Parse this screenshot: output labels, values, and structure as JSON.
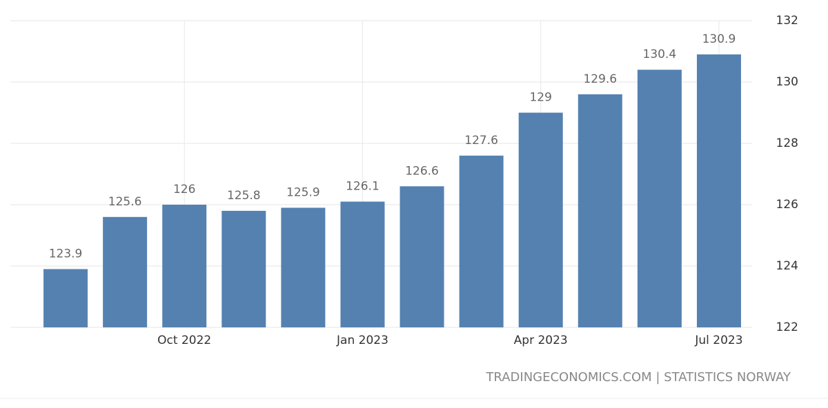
{
  "chart_data": {
    "type": "bar",
    "categories": [
      null,
      null,
      "Oct 2022",
      null,
      null,
      "Jan 2023",
      null,
      null,
      "Apr 2023",
      null,
      null,
      "Jul 2023"
    ],
    "values": [
      123.9,
      125.6,
      126,
      125.8,
      125.9,
      126.1,
      126.6,
      127.6,
      129,
      129.6,
      130.4,
      130.9
    ],
    "color": "#5581b1",
    "ylim": [
      122,
      132
    ],
    "yticks": [
      122,
      124,
      126,
      128,
      130,
      132
    ],
    "grid": true,
    "source": "TRADINGECONOMICS.COM | STATISTICS NORWAY"
  }
}
